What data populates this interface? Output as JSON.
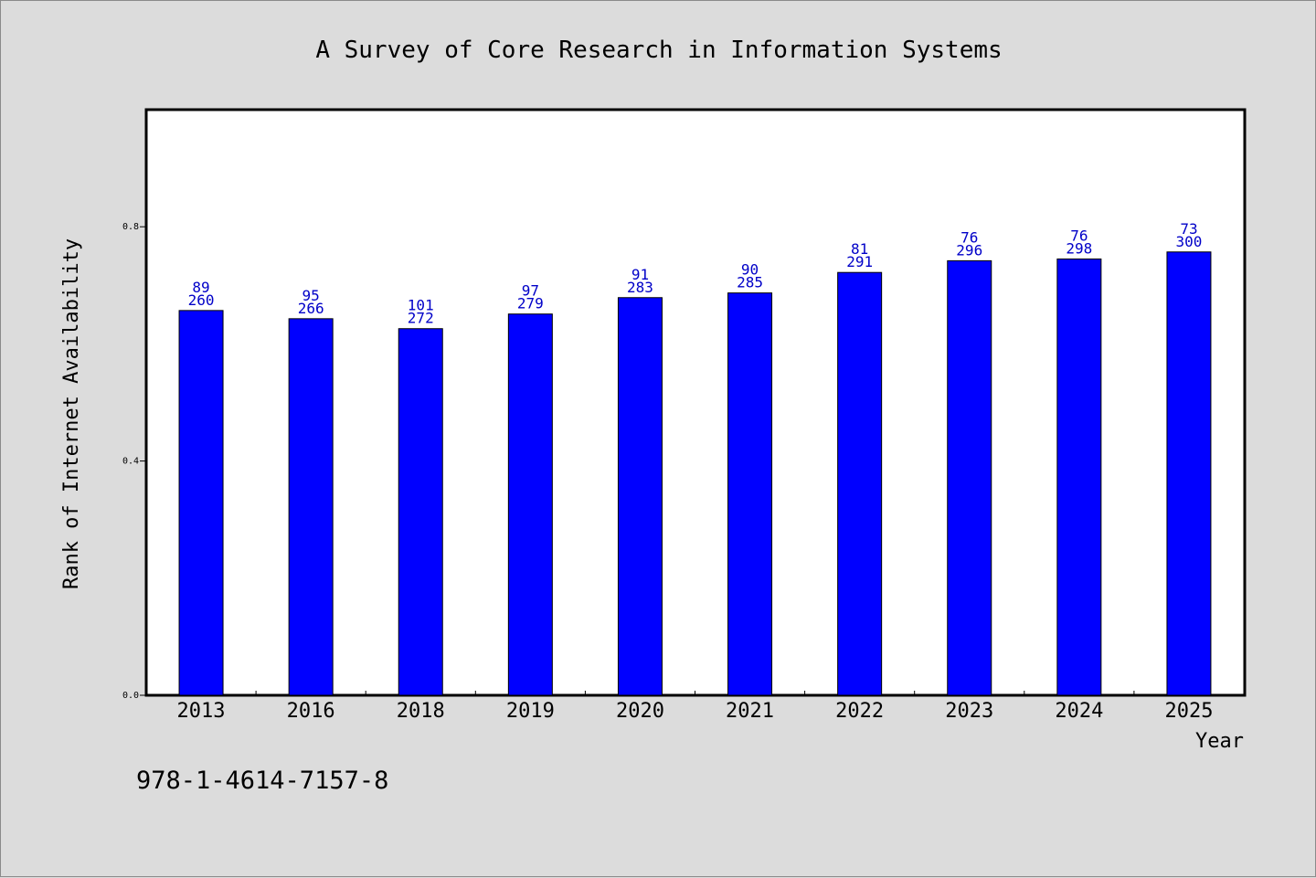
{
  "chart_data": {
    "type": "bar",
    "title": "A Survey of Core Research in Information Systems",
    "xlabel": "Year",
    "ylabel": "Rank of Internet Availability",
    "categories": [
      "2013",
      "2016",
      "2018",
      "2019",
      "2020",
      "2021",
      "2022",
      "2023",
      "2024",
      "2025"
    ],
    "values": [
      0.657,
      0.643,
      0.626,
      0.651,
      0.679,
      0.687,
      0.722,
      0.742,
      0.745,
      0.757
    ],
    "labels_top": [
      "89",
      "95",
      "101",
      "97",
      "91",
      "90",
      "81",
      "76",
      "76",
      "73"
    ],
    "labels_bottom": [
      "260",
      "266",
      "272",
      "279",
      "283",
      "285",
      "291",
      "296",
      "298",
      "300"
    ],
    "ylim": [
      0,
      1.0
    ],
    "yticks": [
      0.0,
      0.4,
      0.8
    ],
    "ytick_labels": [
      "0.0",
      "0.4",
      "0.8"
    ],
    "grid": false,
    "colors": {
      "bar": "#0000ff",
      "data_label": "#0000c8",
      "background": "#dcdcdc",
      "plot_bg": "#ffffff"
    }
  },
  "footer": {
    "isbn": "978-1-4614-7157-8"
  }
}
